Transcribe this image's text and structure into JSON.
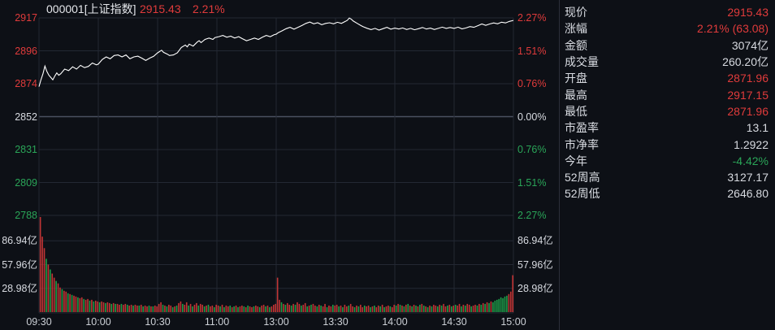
{
  "header": {
    "symbol_title": "000001[上证指数]",
    "price": "2915.43",
    "change_pct": "2.21%"
  },
  "colors": {
    "up": "#e03b3b",
    "down": "#2aa558",
    "neutral_text": "#d7dae0",
    "line": "#ffffff",
    "grid": "#232833",
    "grid_zero": "#4a5160",
    "background": "#0d1016",
    "vol_up": "#c23535",
    "vol_down": "#1da04a",
    "divider": "#2b2f3a"
  },
  "price_axis_left": [
    {
      "text": "2917",
      "tone": "up"
    },
    {
      "text": "2896",
      "tone": "up"
    },
    {
      "text": "2874",
      "tone": "up"
    },
    {
      "text": "2852",
      "tone": "neutral"
    },
    {
      "text": "2831",
      "tone": "down"
    },
    {
      "text": "2809",
      "tone": "down"
    },
    {
      "text": "2788",
      "tone": "down"
    }
  ],
  "pct_axis_right": [
    {
      "text": "2.27%",
      "tone": "up"
    },
    {
      "text": "1.51%",
      "tone": "up"
    },
    {
      "text": "0.76%",
      "tone": "up"
    },
    {
      "text": "0.00%",
      "tone": "neutral"
    },
    {
      "text": "0.76%",
      "tone": "down"
    },
    {
      "text": "1.51%",
      "tone": "down"
    },
    {
      "text": "2.27%",
      "tone": "down"
    }
  ],
  "volume_axis_left": [
    "86.94亿",
    "57.96亿",
    "28.98亿"
  ],
  "volume_axis_right": [
    "86.94亿",
    "57.96亿",
    "28.98亿"
  ],
  "time_axis": [
    "09:30",
    "10:00",
    "10:30",
    "11:00",
    "13:00",
    "13:30",
    "14:00",
    "14:30",
    "15:00"
  ],
  "panel": {
    "rows": [
      {
        "label": "现价",
        "value": "2915.43",
        "tone": "up"
      },
      {
        "label": "涨幅",
        "value": "2.21% (63.08)",
        "tone": "up"
      },
      {
        "label": "金额",
        "value": "3074亿",
        "tone": "neutral"
      },
      {
        "label": "成交量",
        "value": "260.20亿",
        "tone": "neutral"
      },
      {
        "label": "开盘",
        "value": "2871.96",
        "tone": "up"
      },
      {
        "label": "最高",
        "value": "2917.15",
        "tone": "up"
      },
      {
        "label": "最低",
        "value": "2871.96",
        "tone": "up"
      },
      {
        "label": "市盈率",
        "value": "13.1",
        "tone": "neutral"
      },
      {
        "label": "市净率",
        "value": "1.2922",
        "tone": "neutral"
      },
      {
        "label": "今年",
        "value": "-4.42%",
        "tone": "down"
      },
      {
        "label": "52周高",
        "value": "3127.17",
        "tone": "neutral"
      },
      {
        "label": "52周低",
        "value": "2646.80",
        "tone": "neutral"
      }
    ]
  },
  "chart_data": {
    "type": "line",
    "title": "000001[上证指数] intraday price with volume bars",
    "x_time_labels": [
      "09:30",
      "10:00",
      "10:30",
      "11:00",
      "13:00",
      "13:30",
      "14:00",
      "14:30",
      "15:00"
    ],
    "session_minutes": 240,
    "prev_close": 2852.39,
    "open": 2871.96,
    "high": 2917.15,
    "low": 2871.96,
    "last": 2915.43,
    "price_ylim": [
      2787.6,
      2917.1
    ],
    "price_gridline_values": [
      2917,
      2896,
      2874,
      2852,
      2831,
      2809,
      2788
    ],
    "pct_gridline_labels": [
      "2.27%",
      "1.51%",
      "0.76%",
      "0.00%",
      "0.76%",
      "1.51%",
      "2.27%"
    ],
    "volume_ylim_yi": [
      0,
      115.92
    ],
    "volume_gridline_values_yi": [
      86.94,
      57.96,
      28.98
    ],
    "price_points": [
      [
        0,
        2872.0
      ],
      [
        1,
        2876.5
      ],
      [
        2,
        2880.5
      ],
      [
        3,
        2885.5
      ],
      [
        4,
        2882.0
      ],
      [
        5,
        2879.5
      ],
      [
        6,
        2878.0
      ],
      [
        7,
        2876.5
      ],
      [
        8,
        2879.0
      ],
      [
        9,
        2881.0
      ],
      [
        10,
        2879.5
      ],
      [
        11,
        2880.5
      ],
      [
        13,
        2883.5
      ],
      [
        15,
        2882.5
      ],
      [
        17,
        2885.0
      ],
      [
        19,
        2883.5
      ],
      [
        21,
        2886.0
      ],
      [
        23,
        2884.5
      ],
      [
        25,
        2885.3
      ],
      [
        27,
        2887.5
      ],
      [
        29,
        2886.3
      ],
      [
        30,
        2886.8
      ],
      [
        32,
        2889.8
      ],
      [
        34,
        2891.5
      ],
      [
        36,
        2890.3
      ],
      [
        38,
        2892.4
      ],
      [
        40,
        2892.8
      ],
      [
        42,
        2891.5
      ],
      [
        44,
        2892.8
      ],
      [
        46,
        2890.3
      ],
      [
        48,
        2891.5
      ],
      [
        50,
        2892.0
      ],
      [
        52,
        2890.7
      ],
      [
        54,
        2889.2
      ],
      [
        56,
        2890.7
      ],
      [
        58,
        2891.9
      ],
      [
        60,
        2894.2
      ],
      [
        62,
        2895.9
      ],
      [
        63,
        2894.5
      ],
      [
        65,
        2893.3
      ],
      [
        66,
        2892.4
      ],
      [
        68,
        2892.8
      ],
      [
        70,
        2894.2
      ],
      [
        72,
        2897.7
      ],
      [
        74,
        2899.3
      ],
      [
        75,
        2898.1
      ],
      [
        76,
        2899.9
      ],
      [
        78,
        2898.6
      ],
      [
        80,
        2901.2
      ],
      [
        81,
        2902.1
      ],
      [
        82,
        2900.9
      ],
      [
        84,
        2903.0
      ],
      [
        86,
        2903.9
      ],
      [
        88,
        2903.0
      ],
      [
        89,
        2904.2
      ],
      [
        91,
        2904.8
      ],
      [
        93,
        2905.6
      ],
      [
        95,
        2904.4
      ],
      [
        97,
        2905.1
      ],
      [
        99,
        2903.9
      ],
      [
        101,
        2904.8
      ],
      [
        103,
        2903.4
      ],
      [
        105,
        2902.1
      ],
      [
        107,
        2903.0
      ],
      [
        109,
        2903.9
      ],
      [
        111,
        2903.0
      ],
      [
        113,
        2904.4
      ],
      [
        115,
        2905.6
      ],
      [
        117,
        2904.8
      ],
      [
        119,
        2906.1
      ],
      [
        120,
        2906.4
      ],
      [
        121,
        2907.4
      ],
      [
        123,
        2908.6
      ],
      [
        125,
        2910.0
      ],
      [
        127,
        2910.9
      ],
      [
        129,
        2909.7
      ],
      [
        131,
        2910.9
      ],
      [
        133,
        2912.1
      ],
      [
        135,
        2913.5
      ],
      [
        137,
        2914.4
      ],
      [
        139,
        2913.2
      ],
      [
        141,
        2913.9
      ],
      [
        143,
        2912.6
      ],
      [
        145,
        2913.5
      ],
      [
        147,
        2913.9
      ],
      [
        149,
        2913.2
      ],
      [
        151,
        2914.2
      ],
      [
        153,
        2913.5
      ],
      [
        155,
        2914.8
      ],
      [
        156,
        2915.5
      ],
      [
        157,
        2917.0
      ],
      [
        158,
        2916.2
      ],
      [
        159,
        2915.0
      ],
      [
        161,
        2913.5
      ],
      [
        163,
        2912.0
      ],
      [
        164,
        2911.3
      ],
      [
        166,
        2910.3
      ],
      [
        168,
        2909.4
      ],
      [
        170,
        2910.2
      ],
      [
        172,
        2909.1
      ],
      [
        174,
        2910.0
      ],
      [
        176,
        2910.9
      ],
      [
        178,
        2909.7
      ],
      [
        180,
        2910.4
      ],
      [
        182,
        2909.8
      ],
      [
        184,
        2910.5
      ],
      [
        186,
        2909.5
      ],
      [
        188,
        2910.2
      ],
      [
        190,
        2909.3
      ],
      [
        192,
        2910.0
      ],
      [
        194,
        2910.8
      ],
      [
        196,
        2909.8
      ],
      [
        198,
        2910.4
      ],
      [
        200,
        2909.5
      ],
      [
        202,
        2910.2
      ],
      [
        204,
        2911.0
      ],
      [
        206,
        2910.2
      ],
      [
        208,
        2910.8
      ],
      [
        210,
        2910.2
      ],
      [
        212,
        2911.0
      ],
      [
        214,
        2909.9
      ],
      [
        216,
        2910.5
      ],
      [
        218,
        2911.4
      ],
      [
        220,
        2910.9
      ],
      [
        222,
        2912.0
      ],
      [
        224,
        2913.1
      ],
      [
        226,
        2912.2
      ],
      [
        228,
        2913.1
      ],
      [
        230,
        2913.8
      ],
      [
        232,
        2913.2
      ],
      [
        234,
        2914.3
      ],
      [
        236,
        2913.8
      ],
      [
        238,
        2914.8
      ],
      [
        240,
        2915.43
      ]
    ],
    "volume_bars_yi_signed": [
      116,
      92,
      78,
      -65,
      58,
      -52,
      47,
      42,
      -38,
      35,
      30,
      -28,
      26,
      25,
      -23,
      22,
      -21,
      20,
      19,
      -18,
      17,
      18,
      -16,
      15,
      16,
      -14,
      15,
      -13,
      14,
      13,
      -12,
      13,
      12,
      -11,
      12,
      11,
      -10,
      11,
      -10,
      10,
      9,
      -10,
      9,
      10,
      -9,
      8,
      9,
      -8,
      9,
      8,
      -8,
      9,
      -7,
      8,
      7,
      -8,
      7,
      -7,
      8,
      7,
      10,
      12,
      -9,
      8,
      -7,
      9,
      8,
      -6,
      7,
      -8,
      11,
      13,
      -10,
      9,
      12,
      -8,
      10,
      -7,
      9,
      11,
      -8,
      10,
      9,
      -7,
      8,
      -9,
      7,
      8,
      -6,
      9,
      8,
      -7,
      9,
      -6,
      8,
      7,
      -8,
      6,
      -7,
      8,
      -6,
      7,
      8,
      -7,
      6,
      -8,
      7,
      6,
      -7,
      8,
      7,
      -6,
      8,
      9,
      -7,
      8,
      -6,
      7,
      9,
      10,
      42,
      15,
      -12,
      10,
      -9,
      11,
      9,
      -8,
      10,
      -9,
      12,
      10,
      -8,
      9,
      11,
      -7,
      8,
      -9,
      10,
      8,
      -7,
      9,
      -8,
      7,
      10,
      -6,
      8,
      7,
      -9,
      8,
      9,
      -7,
      8,
      -6,
      9,
      7,
      -8,
      10,
      7,
      -6,
      8,
      -7,
      9,
      6,
      -8,
      7,
      8,
      -6,
      7,
      -8,
      6,
      8,
      -7,
      9,
      -6,
      7,
      8,
      -7,
      6,
      9,
      -8,
      10,
      -9,
      8,
      -7,
      9,
      -10,
      8,
      -7,
      9,
      -8,
      7,
      -9,
      10,
      -8,
      7,
      -6,
      8,
      -7,
      9,
      8,
      -7,
      9,
      -8,
      10,
      7,
      -8,
      9,
      -7,
      8,
      -9,
      8,
      10,
      -7,
      9,
      -8,
      10,
      9,
      -7,
      8,
      9,
      -8,
      10,
      -9,
      11,
      -10,
      12,
      -11,
      13,
      -12,
      -14,
      -15,
      -16,
      -18,
      -17,
      -19,
      -20,
      22,
      25,
      45
    ]
  }
}
